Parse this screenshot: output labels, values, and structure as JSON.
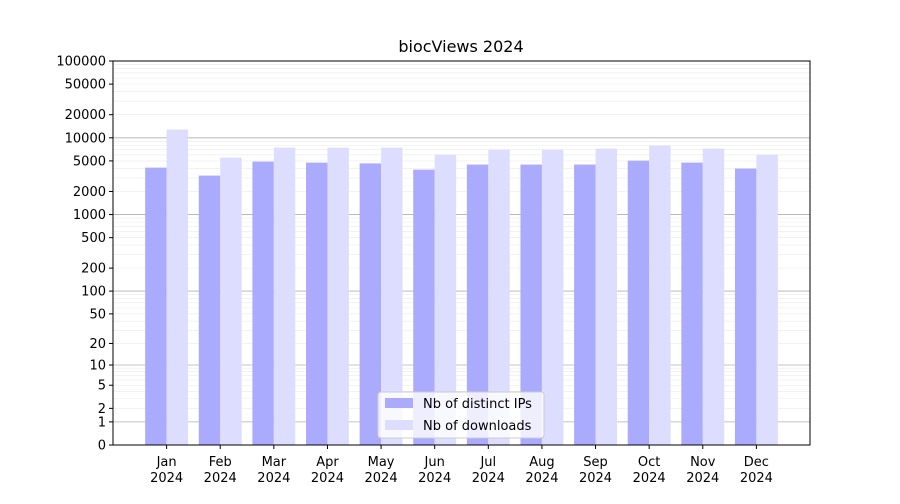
{
  "chart_data": {
    "type": "bar",
    "title": "biocViews 2024",
    "xlabel": "",
    "ylabel": "",
    "y_scale": "log(1+y)",
    "ylim": [
      0,
      100000
    ],
    "y_ticks": [
      0,
      1,
      2,
      5,
      10,
      20,
      50,
      100,
      200,
      500,
      1000,
      2000,
      5000,
      10000,
      20000,
      50000,
      100000
    ],
    "grid": true,
    "legend_position": "bottom-center",
    "categories": [
      "Jan\n2024",
      "Feb\n2024",
      "Mar\n2024",
      "Apr\n2024",
      "May\n2024",
      "Jun\n2024",
      "Jul\n2024",
      "Aug\n2024",
      "Sep\n2024",
      "Oct\n2024",
      "Nov\n2024",
      "Dec\n2024"
    ],
    "series": [
      {
        "name": "Nb of distinct IPs",
        "color": "#aaaaff",
        "values": [
          4090,
          3220,
          4900,
          4750,
          4640,
          3850,
          4480,
          4480,
          4480,
          5040,
          4750,
          3970
        ]
      },
      {
        "name": "Nb of downloads",
        "color": "#ddddff",
        "values": [
          12800,
          5520,
          7450,
          7450,
          7450,
          6040,
          7020,
          7020,
          7230,
          7910,
          7230,
          6040
        ]
      }
    ]
  }
}
